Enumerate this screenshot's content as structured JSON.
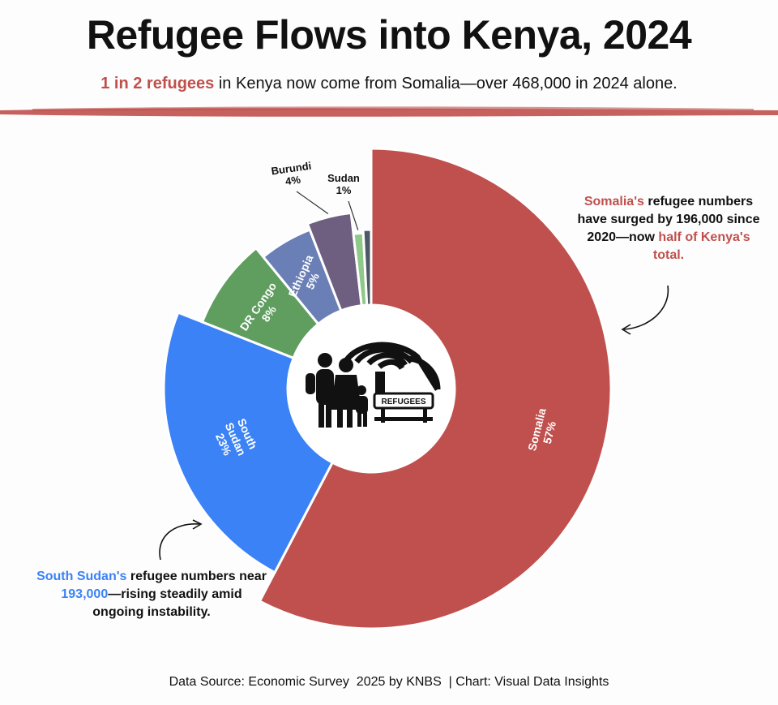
{
  "title": "Refugee Flows into Kenya, 2024",
  "subtitle": {
    "highlight": "1 in 2 refugees",
    "rest": " in Kenya now come from Somalia—over 468,000 in 2024 alone."
  },
  "colors": {
    "somalia": "#c0504d",
    "south_sudan": "#3b82f6",
    "dr_congo": "#5f9e5f",
    "ethiopia": "#6a7fb5",
    "burundi": "#6e5f80",
    "sudan": "#8fc98a",
    "other": "#4d5866",
    "brush": "#c0504d"
  },
  "center_icon": {
    "name": "refugees-family-icon",
    "sign_text": "REFUGEES"
  },
  "chart_data": {
    "type": "pie",
    "donut": true,
    "title": "Refugee Flows into Kenya, 2024",
    "unit": "%",
    "slices": [
      {
        "label": "Somalia",
        "value": 57,
        "color_key": "somalia"
      },
      {
        "label": "South Sudan",
        "value": 23,
        "color_key": "south_sudan"
      },
      {
        "label": "DR Congo",
        "value": 8,
        "color_key": "dr_congo"
      },
      {
        "label": "Ethiopia",
        "value": 5,
        "color_key": "ethiopia"
      },
      {
        "label": "Burundi",
        "value": 4,
        "color_key": "burundi"
      },
      {
        "label": "Sudan",
        "value": 1,
        "color_key": "sudan"
      },
      {
        "label": "",
        "value": 0.8,
        "color_key": "other"
      }
    ]
  },
  "annotations": {
    "somalia": {
      "p1": "Somalia's",
      "p2": " refugee numbers have surged by 196,000 since 2020—now ",
      "p3": "half of Kenya's total."
    },
    "south_sudan": {
      "p1": "South Sudan's",
      "p2": " refugee numbers near ",
      "p3": "193,000",
      "p4": "—rising steadily amid ongoing instability."
    }
  },
  "footer": {
    "source": "Data Source: Economic Survey  2025 by KNBS",
    "credit": "  | Chart: Visual Data Insights"
  }
}
